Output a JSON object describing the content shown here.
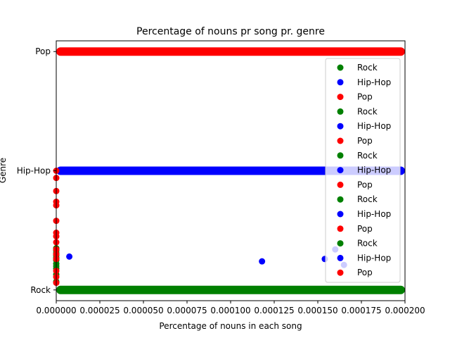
{
  "chart_data": {
    "type": "scatter",
    "title": "Percentage of nouns pr song pr. genre",
    "xlabel": "Percentage of nouns in each song",
    "ylabel": "Genre",
    "xlim": [
      0,
      0.0002
    ],
    "ylim": [
      -0.09,
      2.09
    ],
    "x_ticks": [
      "0.000000",
      "0.000025",
      "0.000050",
      "0.000075",
      "0.000100",
      "0.000125",
      "0.000150",
      "0.000175",
      "0.000200"
    ],
    "x_tick_values": [
      0,
      2.5e-05,
      5e-05,
      7.5e-05,
      0.0001,
      0.000125,
      0.00015,
      0.000175,
      0.0002
    ],
    "y_ticks": [
      "Rock",
      "Hip-Hop",
      "Pop"
    ],
    "y_tick_values": [
      0,
      1,
      2
    ],
    "grid": false,
    "legend": {
      "placement": "right",
      "entries": [
        "Rock",
        "Hip-Hop",
        "Pop",
        "Rock",
        "Hip-Hop",
        "Pop",
        "Rock",
        "Hip-Hop",
        "Pop",
        "Rock",
        "Hip-Hop",
        "Pop",
        "Rock",
        "Hip-Hop",
        "Pop"
      ]
    },
    "series": [
      {
        "name": "Rock",
        "color": "#008000",
        "band": {
          "y": 0,
          "x_range": [
            0,
            0.0002
          ]
        },
        "points": [
          {
            "x": 0.0,
            "y": 0.35
          },
          {
            "x": 0.0,
            "y": 0.33
          },
          {
            "x": 0.0,
            "y": 0.31
          },
          {
            "x": 0.0,
            "y": 0.29
          },
          {
            "x": 0.0,
            "y": 0.27
          },
          {
            "x": 0.0,
            "y": 0.25
          },
          {
            "x": 0.0,
            "y": 0.22
          },
          {
            "x": 0.0,
            "y": 0.2
          },
          {
            "x": 0.0,
            "y": 0.18
          },
          {
            "x": 0.0,
            "y": 0.13
          },
          {
            "x": 0.0,
            "y": 0.07
          }
        ]
      },
      {
        "name": "Hip-Hop",
        "color": "#0000ff",
        "band": {
          "y": 1,
          "x_range": [
            0,
            0.0002
          ]
        },
        "points": [
          {
            "x": 7.5e-06,
            "y": 0.28
          },
          {
            "x": 0.000118,
            "y": 0.24
          },
          {
            "x": 0.000154,
            "y": 0.26
          },
          {
            "x": 0.00016,
            "y": 0.34
          },
          {
            "x": 0.000165,
            "y": 0.21
          }
        ]
      },
      {
        "name": "Pop",
        "color": "#ff0000",
        "band": {
          "y": 2,
          "x_range": [
            0,
            0.0002
          ]
        },
        "points": [
          {
            "x": 0.0,
            "y": 1.0
          },
          {
            "x": 0.0,
            "y": 0.94
          },
          {
            "x": 0.0,
            "y": 0.83
          },
          {
            "x": 0.0,
            "y": 0.74
          },
          {
            "x": 0.0,
            "y": 0.71
          },
          {
            "x": 0.0,
            "y": 0.58
          },
          {
            "x": 0.0,
            "y": 0.48
          },
          {
            "x": 0.0,
            "y": 0.45
          },
          {
            "x": 0.0,
            "y": 0.4
          },
          {
            "x": 0.0,
            "y": 0.34
          },
          {
            "x": 0.0,
            "y": 0.3
          },
          {
            "x": 0.0,
            "y": 0.26
          },
          {
            "x": 0.0,
            "y": 0.16
          },
          {
            "x": 0.0,
            "y": 0.11
          },
          {
            "x": 0.0,
            "y": 0.06
          }
        ]
      }
    ]
  }
}
